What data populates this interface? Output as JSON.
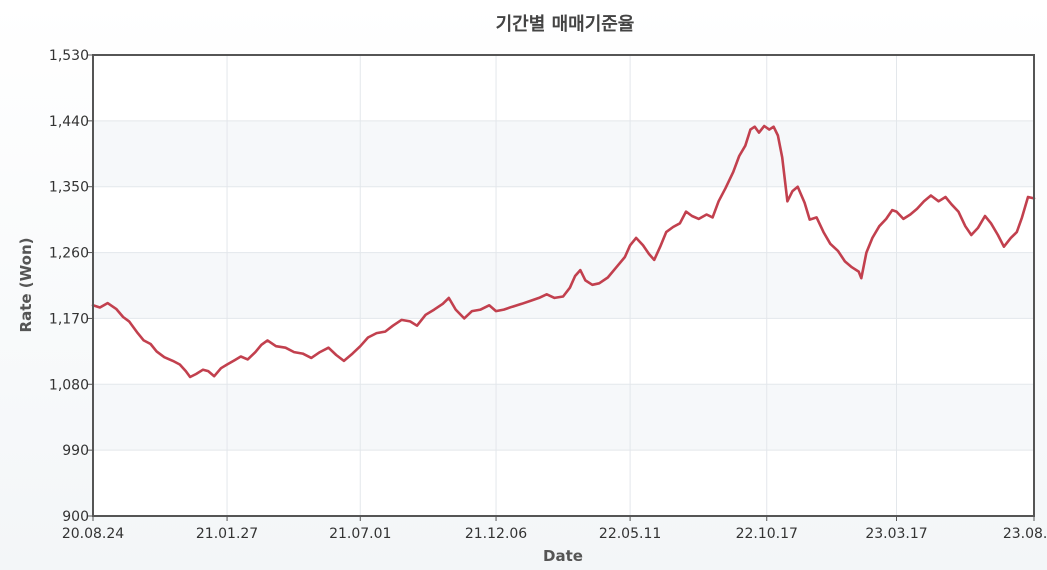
{
  "chart_data": {
    "type": "line",
    "title": "기간별 매매기준율",
    "xlabel": "Date",
    "ylabel": "Rate (Won)",
    "ylim": [
      900,
      1530
    ],
    "yticks": [
      900,
      990,
      1080,
      1170,
      1260,
      1350,
      1440,
      1530
    ],
    "ytick_labels": [
      "900",
      "990",
      "1,080",
      "1,170",
      "1,260",
      "1,350",
      "1,440",
      "1,530"
    ],
    "xlim": [
      "2020-08-24",
      "2023-08-24"
    ],
    "xticks": [
      "2020-08-24",
      "2021-01-27",
      "2021-07-01",
      "2021-12-06",
      "2022-05-11",
      "2022-10-17",
      "2023-03-17",
      "2023-08-24"
    ],
    "xtick_labels": [
      "20.08.24",
      "21.01.27",
      "21.07.01",
      "21.12.06",
      "22.05.11",
      "22.10.17",
      "23.03.17",
      "23.08.24"
    ],
    "grid": true,
    "legend": "none",
    "line_color": "#c2404e",
    "series": [
      {
        "points": [
          [
            "2020-08-24",
            1188
          ],
          [
            "2020-09-01",
            1185
          ],
          [
            "2020-09-10",
            1191
          ],
          [
            "2020-09-20",
            1183
          ],
          [
            "2020-09-28",
            1172
          ],
          [
            "2020-10-05",
            1166
          ],
          [
            "2020-10-15",
            1150
          ],
          [
            "2020-10-22",
            1140
          ],
          [
            "2020-10-30",
            1135
          ],
          [
            "2020-11-06",
            1125
          ],
          [
            "2020-11-15",
            1117
          ],
          [
            "2020-11-25",
            1112
          ],
          [
            "2020-12-03",
            1107
          ],
          [
            "2020-12-10",
            1098
          ],
          [
            "2020-12-15",
            1090
          ],
          [
            "2020-12-22",
            1094
          ],
          [
            "2020-12-30",
            1100
          ],
          [
            "2021-01-05",
            1098
          ],
          [
            "2021-01-12",
            1091
          ],
          [
            "2021-01-20",
            1102
          ],
          [
            "2021-01-27",
            1107
          ],
          [
            "2021-02-05",
            1113
          ],
          [
            "2021-02-12",
            1118
          ],
          [
            "2021-02-20",
            1114
          ],
          [
            "2021-03-01",
            1124
          ],
          [
            "2021-03-08",
            1134
          ],
          [
            "2021-03-15",
            1140
          ],
          [
            "2021-03-25",
            1132
          ],
          [
            "2021-04-05",
            1130
          ],
          [
            "2021-04-15",
            1124
          ],
          [
            "2021-04-25",
            1122
          ],
          [
            "2021-05-05",
            1116
          ],
          [
            "2021-05-15",
            1124
          ],
          [
            "2021-05-25",
            1130
          ],
          [
            "2021-06-03",
            1120
          ],
          [
            "2021-06-12",
            1112
          ],
          [
            "2021-06-22",
            1122
          ],
          [
            "2021-07-01",
            1132
          ],
          [
            "2021-07-10",
            1144
          ],
          [
            "2021-07-20",
            1150
          ],
          [
            "2021-07-30",
            1152
          ],
          [
            "2021-08-08",
            1160
          ],
          [
            "2021-08-18",
            1168
          ],
          [
            "2021-08-28",
            1166
          ],
          [
            "2021-09-05",
            1160
          ],
          [
            "2021-09-15",
            1175
          ],
          [
            "2021-09-25",
            1182
          ],
          [
            "2021-10-05",
            1190
          ],
          [
            "2021-10-12",
            1198
          ],
          [
            "2021-10-20",
            1182
          ],
          [
            "2021-10-30",
            1170
          ],
          [
            "2021-11-08",
            1180
          ],
          [
            "2021-11-18",
            1182
          ],
          [
            "2021-11-28",
            1188
          ],
          [
            "2021-12-06",
            1180
          ],
          [
            "2021-12-15",
            1182
          ],
          [
            "2021-12-25",
            1186
          ],
          [
            "2022-01-05",
            1190
          ],
          [
            "2022-01-15",
            1194
          ],
          [
            "2022-01-25",
            1198
          ],
          [
            "2022-02-03",
            1203
          ],
          [
            "2022-02-12",
            1198
          ],
          [
            "2022-02-22",
            1200
          ],
          [
            "2022-03-02",
            1212
          ],
          [
            "2022-03-08",
            1228
          ],
          [
            "2022-03-14",
            1236
          ],
          [
            "2022-03-20",
            1222
          ],
          [
            "2022-03-28",
            1216
          ],
          [
            "2022-04-05",
            1218
          ],
          [
            "2022-04-15",
            1226
          ],
          [
            "2022-04-25",
            1240
          ],
          [
            "2022-05-05",
            1254
          ],
          [
            "2022-05-11",
            1270
          ],
          [
            "2022-05-18",
            1280
          ],
          [
            "2022-05-26",
            1270
          ],
          [
            "2022-06-02",
            1258
          ],
          [
            "2022-06-08",
            1250
          ],
          [
            "2022-06-15",
            1268
          ],
          [
            "2022-06-22",
            1288
          ],
          [
            "2022-06-30",
            1295
          ],
          [
            "2022-07-08",
            1300
          ],
          [
            "2022-07-15",
            1316
          ],
          [
            "2022-07-22",
            1310
          ],
          [
            "2022-07-30",
            1306
          ],
          [
            "2022-08-08",
            1312
          ],
          [
            "2022-08-15",
            1308
          ],
          [
            "2022-08-22",
            1330
          ],
          [
            "2022-08-30",
            1348
          ],
          [
            "2022-09-08",
            1370
          ],
          [
            "2022-09-15",
            1392
          ],
          [
            "2022-09-22",
            1406
          ],
          [
            "2022-09-28",
            1428
          ],
          [
            "2022-10-03",
            1432
          ],
          [
            "2022-10-08",
            1424
          ],
          [
            "2022-10-14",
            1433
          ],
          [
            "2022-10-20",
            1428
          ],
          [
            "2022-10-25",
            1432
          ],
          [
            "2022-10-30",
            1420
          ],
          [
            "2022-11-04",
            1390
          ],
          [
            "2022-11-10",
            1330
          ],
          [
            "2022-11-16",
            1344
          ],
          [
            "2022-11-22",
            1350
          ],
          [
            "2022-11-30",
            1328
          ],
          [
            "2022-12-06",
            1305
          ],
          [
            "2022-12-14",
            1308
          ],
          [
            "2022-12-22",
            1288
          ],
          [
            "2022-12-30",
            1272
          ],
          [
            "2023-01-08",
            1262
          ],
          [
            "2023-01-16",
            1248
          ],
          [
            "2023-01-24",
            1240
          ],
          [
            "2023-02-01",
            1234
          ],
          [
            "2023-02-04",
            1225
          ],
          [
            "2023-02-10",
            1260
          ],
          [
            "2023-02-17",
            1280
          ],
          [
            "2023-02-25",
            1296
          ],
          [
            "2023-03-05",
            1306
          ],
          [
            "2023-03-12",
            1318
          ],
          [
            "2023-03-17",
            1316
          ],
          [
            "2023-03-25",
            1306
          ],
          [
            "2023-04-02",
            1312
          ],
          [
            "2023-04-10",
            1320
          ],
          [
            "2023-04-18",
            1330
          ],
          [
            "2023-04-26",
            1338
          ],
          [
            "2023-05-05",
            1330
          ],
          [
            "2023-05-13",
            1336
          ],
          [
            "2023-05-20",
            1326
          ],
          [
            "2023-05-28",
            1316
          ],
          [
            "2023-06-05",
            1296
          ],
          [
            "2023-06-12",
            1284
          ],
          [
            "2023-06-20",
            1294
          ],
          [
            "2023-06-28",
            1310
          ],
          [
            "2023-07-05",
            1300
          ],
          [
            "2023-07-13",
            1284
          ],
          [
            "2023-07-20",
            1268
          ],
          [
            "2023-07-28",
            1280
          ],
          [
            "2023-08-04",
            1288
          ],
          [
            "2023-08-10",
            1308
          ],
          [
            "2023-08-17",
            1336
          ],
          [
            "2023-08-24",
            1334
          ]
        ]
      }
    ]
  }
}
